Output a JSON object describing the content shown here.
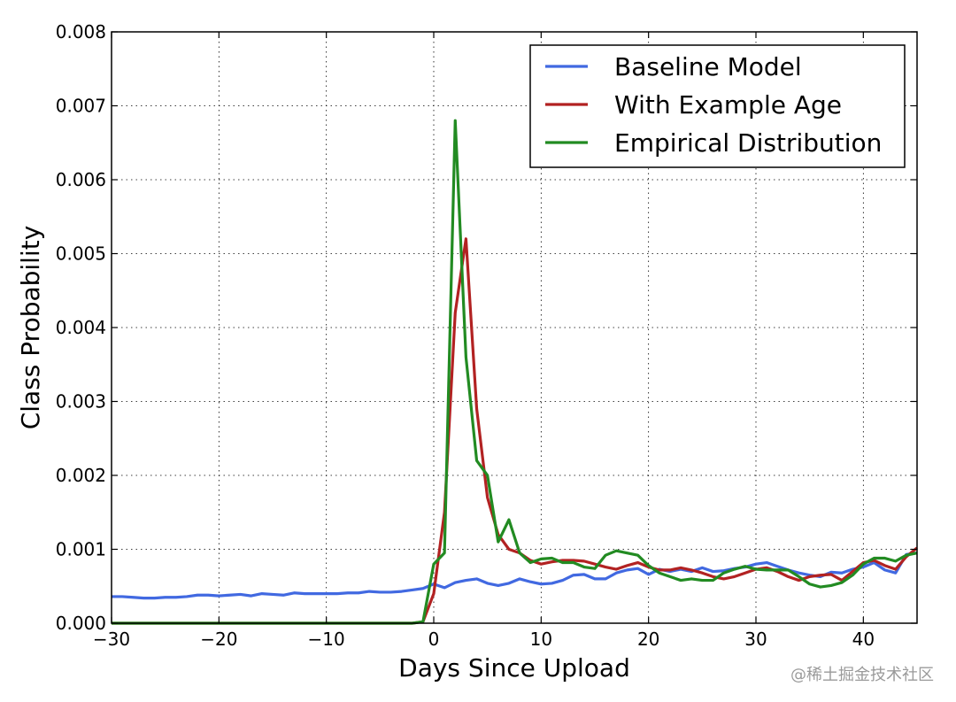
{
  "chart_data": {
    "type": "line",
    "xlabel": "Days Since Upload",
    "ylabel": "Class Probability",
    "xlim": [
      -30,
      45
    ],
    "ylim": [
      0,
      0.008
    ],
    "xticks": [
      -30,
      -20,
      -10,
      0,
      10,
      20,
      30,
      40
    ],
    "xtick_labels": [
      "−30",
      "−20",
      "−10",
      "0",
      "10",
      "20",
      "30",
      "40"
    ],
    "yticks": [
      0,
      0.001,
      0.002,
      0.003,
      0.004,
      0.005,
      0.006,
      0.007,
      0.008
    ],
    "ytick_labels": [
      "0.000",
      "0.001",
      "0.002",
      "0.003",
      "0.004",
      "0.005",
      "0.006",
      "0.007",
      "0.008"
    ],
    "grid": true,
    "legend_position": "top-right",
    "series": [
      {
        "name": "Baseline Model",
        "color": "#4169e1",
        "x": [
          -30,
          -29,
          -28,
          -27,
          -26,
          -25,
          -24,
          -23,
          -22,
          -21,
          -20,
          -19,
          -18,
          -17,
          -16,
          -15,
          -14,
          -13,
          -12,
          -11,
          -10,
          -9,
          -8,
          -7,
          -6,
          -5,
          -4,
          -3,
          -2,
          -1,
          0,
          1,
          2,
          3,
          4,
          5,
          6,
          7,
          8,
          9,
          10,
          11,
          12,
          13,
          14,
          15,
          16,
          17,
          18,
          19,
          20,
          21,
          22,
          23,
          24,
          25,
          26,
          27,
          28,
          29,
          30,
          31,
          32,
          33,
          34,
          35,
          36,
          37,
          38,
          39,
          40,
          41,
          42,
          43,
          44,
          45
        ],
        "y": [
          0.00036,
          0.00036,
          0.00035,
          0.00034,
          0.00034,
          0.00035,
          0.00035,
          0.00036,
          0.00038,
          0.00038,
          0.00037,
          0.00038,
          0.00039,
          0.00037,
          0.0004,
          0.00039,
          0.00038,
          0.00041,
          0.0004,
          0.0004,
          0.0004,
          0.0004,
          0.00041,
          0.00041,
          0.00043,
          0.00042,
          0.00042,
          0.00043,
          0.00045,
          0.00047,
          0.00053,
          0.00048,
          0.00055,
          0.00058,
          0.0006,
          0.00054,
          0.00051,
          0.00054,
          0.0006,
          0.00056,
          0.00053,
          0.00054,
          0.00058,
          0.00065,
          0.00066,
          0.0006,
          0.0006,
          0.00068,
          0.00072,
          0.00074,
          0.00066,
          0.00073,
          0.0007,
          0.00073,
          0.0007,
          0.00075,
          0.0007,
          0.00071,
          0.00074,
          0.00076,
          0.0008,
          0.00082,
          0.00077,
          0.00072,
          0.00068,
          0.00065,
          0.00063,
          0.00069,
          0.00068,
          0.00073,
          0.00076,
          0.00082,
          0.00072,
          0.00068,
          0.00093,
          0.00095
        ]
      },
      {
        "name": "With Example Age",
        "color": "#b22222",
        "x": [
          -30,
          -2,
          -1,
          0,
          1,
          2,
          3,
          4,
          5,
          6,
          7,
          8,
          9,
          10,
          11,
          12,
          13,
          14,
          15,
          16,
          17,
          18,
          19,
          20,
          21,
          22,
          23,
          24,
          25,
          26,
          27,
          28,
          29,
          30,
          31,
          32,
          33,
          34,
          35,
          36,
          37,
          38,
          39,
          40,
          41,
          42,
          43,
          44,
          45
        ],
        "y": [
          0,
          0,
          2e-05,
          0.0004,
          0.0015,
          0.0042,
          0.0052,
          0.0029,
          0.0017,
          0.0012,
          0.001,
          0.00095,
          0.00085,
          0.0008,
          0.00083,
          0.00085,
          0.00085,
          0.00084,
          0.0008,
          0.00076,
          0.00073,
          0.00078,
          0.00082,
          0.00076,
          0.00072,
          0.00072,
          0.00075,
          0.00072,
          0.00068,
          0.00063,
          0.0006,
          0.00063,
          0.00068,
          0.00073,
          0.00075,
          0.0007,
          0.00063,
          0.00058,
          0.00063,
          0.00065,
          0.00066,
          0.00058,
          0.0007,
          0.00082,
          0.00085,
          0.00078,
          0.00073,
          0.0009,
          0.00102
        ]
      },
      {
        "name": "Empirical Distribution",
        "color": "#228b22",
        "x": [
          -30,
          -2,
          -1,
          0,
          1,
          2,
          3,
          4,
          5,
          6,
          7,
          8,
          9,
          10,
          11,
          12,
          13,
          14,
          15,
          16,
          17,
          18,
          19,
          20,
          21,
          22,
          23,
          24,
          25,
          26,
          27,
          28,
          29,
          30,
          31,
          32,
          33,
          34,
          35,
          36,
          37,
          38,
          39,
          40,
          41,
          42,
          43,
          44,
          45
        ],
        "y": [
          0,
          0,
          2e-05,
          0.0008,
          0.00095,
          0.0068,
          0.0036,
          0.0022,
          0.002,
          0.0011,
          0.0014,
          0.00095,
          0.00082,
          0.00087,
          0.00088,
          0.00082,
          0.00082,
          0.00076,
          0.00074,
          0.00092,
          0.00098,
          0.00095,
          0.00092,
          0.00078,
          0.00068,
          0.00063,
          0.00058,
          0.0006,
          0.00058,
          0.00058,
          0.00068,
          0.00073,
          0.00077,
          0.00073,
          0.00072,
          0.00072,
          0.00072,
          0.00063,
          0.00053,
          0.00049,
          0.00051,
          0.00055,
          0.00065,
          0.0008,
          0.00088,
          0.00088,
          0.00084,
          0.00092,
          0.00095
        ]
      }
    ]
  },
  "watermark": "@稀土掘金技术社区"
}
